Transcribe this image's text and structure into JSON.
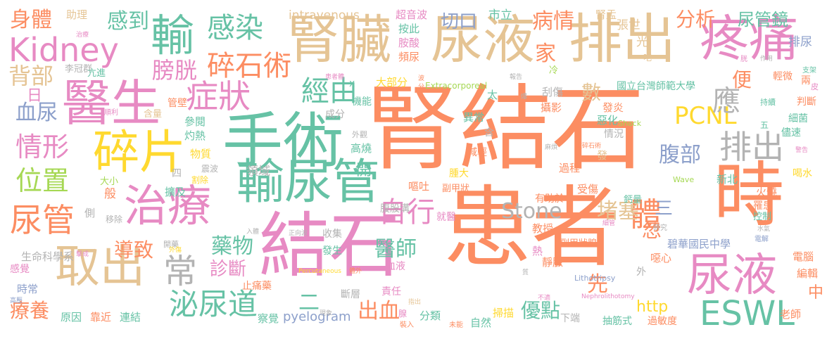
{
  "colors": {
    "orange": "#fc8d62",
    "teal": "#66c2a5",
    "tan": "#e5c494",
    "pink": "#e78ac3",
    "lavender": "#8da0cb",
    "gray": "#b3b3b3",
    "yellow": "#ffd92f",
    "green": "#a6d854"
  },
  "words": [
    {
      "text": "腎結石",
      "color": "orange"
    },
    {
      "text": "患者",
      "color": "orange"
    },
    {
      "text": "結石",
      "color": "pink"
    },
    {
      "text": "手術",
      "color": "teal"
    },
    {
      "text": "尿液",
      "color": "tan"
    },
    {
      "text": "排出",
      "color": "tan"
    },
    {
      "text": "腎臟",
      "color": "tan"
    },
    {
      "text": "疼痛",
      "color": "pink"
    },
    {
      "text": "醫生",
      "color": "pink"
    },
    {
      "text": "時",
      "color": "orange"
    },
    {
      "text": "輸",
      "color": "teal"
    },
    {
      "text": "治療",
      "color": "pink"
    },
    {
      "text": "輸尿管",
      "color": "teal"
    },
    {
      "text": "碎片",
      "color": "yellow"
    },
    {
      "text": "取出",
      "color": "tan"
    },
    {
      "text": "尿液",
      "color": "pink"
    },
    {
      "text": "感染",
      "color": "teal"
    },
    {
      "text": "Kidney",
      "color": "pink"
    },
    {
      "text": "尿管",
      "color": "orange"
    },
    {
      "text": "症狀",
      "color": "pink"
    },
    {
      "text": "碎石術",
      "color": "orange"
    },
    {
      "text": "常",
      "color": "gray"
    },
    {
      "text": "泌尿道",
      "color": "teal"
    },
    {
      "text": "ESWL",
      "color": "teal"
    },
    {
      "text": "排出",
      "color": "gray"
    },
    {
      "text": "體",
      "color": "orange"
    },
    {
      "text": "自行",
      "color": "pink"
    },
    {
      "text": "經由",
      "color": "teal"
    },
    {
      "text": "Stone",
      "color": "gray"
    },
    {
      "text": "PCNL",
      "color": "yellow"
    },
    {
      "text": "情形",
      "color": "pink"
    },
    {
      "text": "位置",
      "color": "green"
    },
    {
      "text": "應",
      "color": "gray"
    },
    {
      "text": "堵塞",
      "color": "tan"
    },
    {
      "text": "腹部",
      "color": "lavender"
    },
    {
      "text": "身體",
      "color": "orange"
    },
    {
      "text": "感到",
      "color": "teal"
    },
    {
      "text": "病情",
      "color": "orange"
    },
    {
      "text": "分析",
      "color": "orange"
    },
    {
      "text": "尿管鏡",
      "color": "teal"
    },
    {
      "text": "家",
      "color": "orange"
    },
    {
      "text": "膀胱",
      "color": "pink"
    },
    {
      "text": "背部",
      "color": "tan"
    },
    {
      "text": "切口",
      "color": "lavender"
    },
    {
      "text": "藥物",
      "color": "teal"
    },
    {
      "text": "醫師",
      "color": "teal"
    },
    {
      "text": "診斷",
      "color": "pink"
    },
    {
      "text": "導致",
      "color": "orange"
    },
    {
      "text": "先",
      "color": "orange"
    },
    {
      "text": "出血",
      "color": "orange"
    },
    {
      "text": "優點",
      "color": "teal"
    },
    {
      "text": "療養",
      "color": "orange"
    },
    {
      "text": "血尿",
      "color": "lavender"
    },
    {
      "text": "便",
      "color": "orange"
    },
    {
      "text": "數",
      "color": "tan"
    },
    {
      "text": "三",
      "color": "lavender"
    },
    {
      "text": "二",
      "color": "teal"
    },
    {
      "text": "忽",
      "color": "orange"
    },
    {
      "text": "http",
      "color": "yellow"
    },
    {
      "text": "中",
      "color": "orange"
    },
    {
      "text": "開",
      "color": "teal"
    },
    {
      "text": "日",
      "color": "pink"
    },
    {
      "text": "intravenous",
      "color": "tan"
    },
    {
      "text": "超音波",
      "color": "pink"
    },
    {
      "text": "市立",
      "color": "teal"
    },
    {
      "text": "腎盂",
      "color": "tan"
    },
    {
      "text": "張世",
      "color": "tan"
    },
    {
      "text": "光",
      "color": "tan"
    },
    {
      "text": "排尿",
      "color": "lavender"
    },
    {
      "text": "助理",
      "color": "tan"
    },
    {
      "text": "李冠群",
      "color": "gray"
    },
    {
      "text": "國立台灣師範大學",
      "color": "teal"
    },
    {
      "text": "碧華國民中學",
      "color": "lavender"
    },
    {
      "text": "生命科學系",
      "color": "gray"
    },
    {
      "text": "Extracorporeal",
      "color": "green"
    },
    {
      "text": "Lithotripsy",
      "color": "lavender"
    },
    {
      "text": "Nephrolithotomy",
      "color": "pink"
    },
    {
      "text": "Percutaneous",
      "color": "yellow"
    },
    {
      "text": "pyelogram",
      "color": "lavender"
    },
    {
      "text": "Shock",
      "color": "green"
    },
    {
      "text": "Wave",
      "color": "green"
    },
    {
      "text": "管壁",
      "color": "orange"
    },
    {
      "text": "參閱",
      "color": "teal"
    },
    {
      "text": "灼熱",
      "color": "teal"
    },
    {
      "text": "物質",
      "color": "yellow"
    },
    {
      "text": "領域",
      "color": "gray"
    },
    {
      "text": "擴及",
      "color": "teal"
    },
    {
      "text": "大部分",
      "color": "yellow"
    },
    {
      "text": "按此",
      "color": "teal"
    },
    {
      "text": "胺酸",
      "color": "pink"
    },
    {
      "text": "頻尿",
      "color": "orange"
    },
    {
      "text": "機能",
      "color": "teal"
    },
    {
      "text": "成分",
      "color": "gray"
    },
    {
      "text": "高燒",
      "color": "teal"
    },
    {
      "text": "異常",
      "color": "teal"
    },
    {
      "text": "刮傷",
      "color": "gray"
    },
    {
      "text": "攝影",
      "color": "orange"
    },
    {
      "text": "發炎",
      "color": "orange"
    },
    {
      "text": "惡化",
      "color": "teal"
    },
    {
      "text": "情況",
      "color": "gray"
    },
    {
      "text": "輕微",
      "color": "orange"
    },
    {
      "text": "判斷",
      "color": "orange"
    },
    {
      "text": "細菌",
      "color": "teal"
    },
    {
      "text": "儘速",
      "color": "teal"
    },
    {
      "text": "新北",
      "color": "teal"
    },
    {
      "text": "火燒",
      "color": "orange"
    },
    {
      "text": "喝水",
      "color": "yellow"
    },
    {
      "text": "罹患",
      "color": "orange"
    },
    {
      "text": "控制",
      "color": "teal"
    },
    {
      "text": "鈣量",
      "color": "teal"
    },
    {
      "text": "過程",
      "color": "orange"
    },
    {
      "text": "受傷",
      "color": "orange"
    },
    {
      "text": "有助於",
      "color": "orange"
    },
    {
      "text": "副甲狀腺",
      "color": "orange"
    },
    {
      "text": "副甲狀",
      "color": "orange"
    },
    {
      "text": "嘔吐",
      "color": "orange"
    },
    {
      "text": "腫大",
      "color": "yellow"
    },
    {
      "text": "減輕",
      "color": "orange"
    },
    {
      "text": "腹股溝",
      "color": "gray"
    },
    {
      "text": "就醫",
      "color": "pink"
    },
    {
      "text": "教授",
      "color": "orange"
    },
    {
      "text": "靜脈",
      "color": "orange"
    },
    {
      "text": "噁心",
      "color": "orange"
    },
    {
      "text": "電腦",
      "color": "orange"
    },
    {
      "text": "編輯",
      "color": "orange"
    },
    {
      "text": "老師",
      "color": "orange"
    },
    {
      "text": "過敏度",
      "color": "orange"
    },
    {
      "text": "抽筋式",
      "color": "teal"
    },
    {
      "text": "下端",
      "color": "gray"
    },
    {
      "text": "掃描",
      "color": "yellow"
    },
    {
      "text": "自然",
      "color": "teal"
    },
    {
      "text": "分類",
      "color": "teal"
    },
    {
      "text": "責任",
      "color": "pink"
    },
    {
      "text": "斷層",
      "color": "gray"
    },
    {
      "text": "察覺",
      "color": "teal"
    },
    {
      "text": "連結",
      "color": "teal"
    },
    {
      "text": "靠近",
      "color": "orange"
    },
    {
      "text": "原因",
      "color": "teal"
    },
    {
      "text": "時常",
      "color": "lavender"
    },
    {
      "text": "感覺",
      "color": "pink"
    },
    {
      "text": "止痛藥",
      "color": "orange"
    },
    {
      "text": "收集",
      "color": "gray"
    },
    {
      "text": "發生",
      "color": "teal"
    },
    {
      "text": "血液",
      "color": "pink"
    },
    {
      "text": "大小",
      "color": "green"
    },
    {
      "text": "般",
      "color": "orange"
    },
    {
      "text": "側",
      "color": "gray"
    },
    {
      "text": "移除",
      "color": "gray"
    },
    {
      "text": "割除",
      "color": "yellow"
    },
    {
      "text": "震波",
      "color": "gray"
    },
    {
      "text": "四",
      "color": "gray"
    },
    {
      "text": "亢進",
      "color": "teal"
    },
    {
      "text": "含量",
      "color": "tan"
    },
    {
      "text": "順利",
      "color": "pink"
    },
    {
      "text": "冷",
      "color": "green"
    },
    {
      "text": "太",
      "color": "teal"
    },
    {
      "text": "含",
      "color": "gray"
    },
    {
      "text": "外",
      "color": "gray"
    },
    {
      "text": "熱",
      "color": "pink"
    },
    {
      "text": "發",
      "color": "tan"
    },
    {
      "text": "五",
      "color": "teal"
    },
    {
      "text": "兩",
      "color": "orange"
    },
    {
      "text": "皮",
      "color": "pink"
    },
    {
      "text": "支架",
      "color": "teal"
    },
    {
      "text": "持續",
      "color": "teal"
    },
    {
      "text": "研究",
      "color": "gray"
    },
    {
      "text": "水氣",
      "color": "gray"
    },
    {
      "text": "電解",
      "color": "lavender"
    },
    {
      "text": "細管",
      "color": "pink"
    },
    {
      "text": "波碎石術",
      "color": "orange"
    },
    {
      "text": "外觀",
      "color": "gray"
    },
    {
      "text": "麻煩",
      "color": "gray"
    },
    {
      "text": "開藥",
      "color": "gray"
    },
    {
      "text": "外傷",
      "color": "yellow"
    },
    {
      "text": "擊成",
      "color": "pink"
    },
    {
      "text": "高壓",
      "color": "lavender"
    },
    {
      "text": "入體",
      "color": "gray"
    },
    {
      "text": "正向波",
      "color": "gray"
    },
    {
      "text": "體外",
      "color": "orange"
    },
    {
      "text": "現象",
      "color": "gray"
    },
    {
      "text": "指出",
      "color": "tan"
    },
    {
      "text": "未能",
      "color": "orange"
    },
    {
      "text": "裝入",
      "color": "orange"
    },
    {
      "text": "腺",
      "color": "pink"
    },
    {
      "text": "不適",
      "color": "pink"
    },
    {
      "text": "患者體",
      "color": "pink"
    },
    {
      "text": "波",
      "color": "orange"
    },
    {
      "text": "分",
      "color": "orange"
    },
    {
      "text": "x",
      "color": "teal"
    },
    {
      "text": "報告",
      "color": "gray"
    },
    {
      "text": "爆",
      "color": "gray"
    },
    {
      "text": "吃",
      "color": "tan"
    },
    {
      "text": "胱",
      "color": "pink"
    },
    {
      "text": "作用",
      "color": "gray"
    },
    {
      "text": "治療",
      "color": "pink"
    },
    {
      "text": "警告",
      "color": "pink"
    },
    {
      "text": "質",
      "color": "gray"
    }
  ]
}
